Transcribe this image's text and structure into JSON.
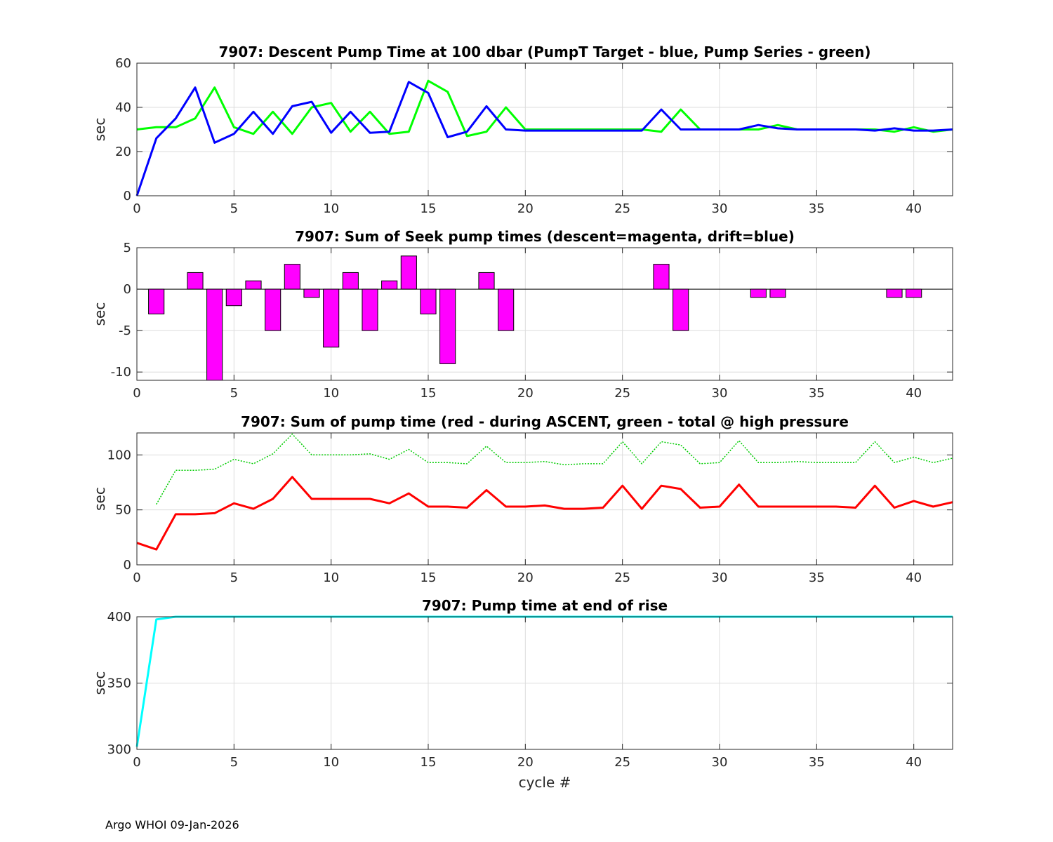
{
  "footer": "Argo WHOI 09-Jan-2026",
  "chart_data": [
    {
      "type": "line",
      "title": "7907: Descent Pump Time at 100 dbar (PumpT Target - blue, Pump Series - green)",
      "xlabel": "",
      "ylabel": "sec",
      "xlim": [
        0,
        42
      ],
      "ylim": [
        0,
        60
      ],
      "xticks": [
        0,
        5,
        10,
        15,
        20,
        25,
        30,
        35,
        40
      ],
      "yticks": [
        0,
        20,
        40,
        60
      ],
      "grid": true,
      "series": [
        {
          "name": "Pump Series",
          "color": "#00ff00",
          "style": "solid",
          "x": [
            0,
            1,
            2,
            3,
            4,
            5,
            6,
            7,
            8,
            9,
            10,
            11,
            12,
            13,
            14,
            15,
            16,
            17,
            18,
            19,
            20,
            21,
            22,
            23,
            24,
            25,
            26,
            27,
            28,
            29,
            30,
            31,
            32,
            33,
            34,
            35,
            36,
            37,
            38,
            39,
            40,
            41,
            42
          ],
          "y": [
            30,
            31,
            31,
            35,
            49,
            31,
            28,
            38,
            28,
            40,
            42,
            29,
            38,
            28,
            29,
            52,
            47,
            27,
            29,
            40,
            30,
            30,
            30,
            30,
            30,
            30,
            30,
            29,
            39,
            30,
            30,
            30,
            30,
            32,
            30,
            30,
            30,
            30,
            30,
            29,
            31,
            29,
            30
          ]
        },
        {
          "name": "PumpT Target",
          "color": "#0000ff",
          "style": "solid",
          "x": [
            0,
            1,
            2,
            3,
            4,
            5,
            6,
            7,
            8,
            9,
            10,
            11,
            12,
            13,
            14,
            15,
            16,
            17,
            18,
            19,
            20,
            21,
            22,
            23,
            24,
            25,
            26,
            27,
            28,
            29,
            30,
            31,
            32,
            33,
            34,
            35,
            36,
            37,
            38,
            39,
            40,
            41,
            42
          ],
          "y": [
            0,
            26,
            35,
            49,
            24,
            28,
            38,
            28,
            40.5,
            42.5,
            28.5,
            38,
            28.5,
            29,
            51.5,
            46.5,
            26.5,
            29,
            40.5,
            30,
            29.5,
            29.5,
            29.5,
            29.5,
            29.5,
            29.5,
            29.5,
            39,
            30,
            30,
            30,
            30,
            32,
            30.5,
            30,
            30,
            30,
            30,
            29.5,
            30.5,
            29.5,
            29.5,
            30
          ]
        }
      ]
    },
    {
      "type": "bar",
      "title": "7907: Sum of Seek pump times (descent=magenta, drift=blue)",
      "xlabel": "",
      "ylabel": "sec",
      "xlim": [
        0,
        42
      ],
      "ylim": [
        -11,
        5
      ],
      "xticks": [
        0,
        5,
        10,
        15,
        20,
        25,
        30,
        35,
        40
      ],
      "yticks": [
        -10,
        -5,
        0,
        5
      ],
      "grid": true,
      "series": [
        {
          "name": "descent",
          "color": "#ff00ff",
          "x": [
            1,
            3,
            4,
            5,
            6,
            7,
            8,
            9,
            10,
            11,
            12,
            13,
            14,
            15,
            16,
            18,
            19,
            27,
            28,
            32,
            33,
            39,
            40
          ],
          "values": [
            -3,
            2,
            -11,
            -2,
            1,
            -5,
            3,
            -1,
            -7,
            2,
            -5,
            1,
            4,
            -3,
            -9,
            2,
            -5,
            3,
            -5,
            -1,
            -1,
            -1,
            -1
          ]
        }
      ]
    },
    {
      "type": "line",
      "title": "7907: Sum of pump time (red - during ASCENT, green - total @ high pressure",
      "xlabel": "",
      "ylabel": "sec",
      "xlim": [
        0,
        42
      ],
      "ylim": [
        0,
        120
      ],
      "xticks": [
        0,
        5,
        10,
        15,
        20,
        25,
        30,
        35,
        40
      ],
      "yticks": [
        0,
        50,
        100
      ],
      "grid": true,
      "series": [
        {
          "name": "total @ high pressure",
          "color": "#00cc00",
          "style": "dotted",
          "x": [
            1,
            2,
            3,
            4,
            5,
            6,
            7,
            8,
            9,
            10,
            11,
            12,
            13,
            14,
            15,
            16,
            17,
            18,
            19,
            20,
            21,
            22,
            23,
            24,
            25,
            26,
            27,
            28,
            29,
            30,
            31,
            32,
            33,
            34,
            35,
            36,
            37,
            38,
            39,
            40,
            41,
            42
          ],
          "y": [
            55,
            86,
            86,
            87,
            96,
            92,
            101,
            119,
            100,
            100,
            100,
            101,
            96,
            105,
            93,
            93,
            92,
            108,
            93,
            93,
            94,
            91,
            92,
            92,
            112,
            92,
            112,
            109,
            92,
            93,
            113,
            93,
            93,
            94,
            93,
            93,
            93,
            112,
            93,
            98,
            93,
            97
          ]
        },
        {
          "name": "during ASCENT",
          "color": "#ff0000",
          "style": "solid",
          "x": [
            0,
            1,
            2,
            3,
            4,
            5,
            6,
            7,
            8,
            9,
            10,
            11,
            12,
            13,
            14,
            15,
            16,
            17,
            18,
            19,
            20,
            21,
            22,
            23,
            24,
            25,
            26,
            27,
            28,
            29,
            30,
            31,
            32,
            33,
            34,
            35,
            36,
            37,
            38,
            39,
            40,
            41,
            42
          ],
          "y": [
            20,
            14,
            46,
            46,
            47,
            56,
            51,
            60,
            80,
            60,
            60,
            60,
            60,
            56,
            65,
            53,
            53,
            52,
            68,
            53,
            53,
            54,
            51,
            51,
            52,
            72,
            51,
            72,
            69,
            52,
            53,
            73,
            53,
            53,
            53,
            53,
            53,
            52,
            72,
            52,
            58,
            53,
            57
          ]
        }
      ]
    },
    {
      "type": "line",
      "title": "7907: Pump time at end of rise",
      "xlabel": "cycle #",
      "ylabel": "sec",
      "xlim": [
        0,
        42
      ],
      "ylim": [
        300,
        400
      ],
      "xticks": [
        0,
        5,
        10,
        15,
        20,
        25,
        30,
        35,
        40
      ],
      "yticks": [
        300,
        350,
        400
      ],
      "grid": true,
      "series": [
        {
          "name": "end of rise",
          "color": "#00ffff",
          "style": "solid",
          "x": [
            0,
            1,
            2,
            3,
            4,
            5,
            6,
            7,
            8,
            9,
            10,
            11,
            12,
            13,
            14,
            15,
            16,
            17,
            18,
            19,
            20,
            21,
            22,
            23,
            24,
            25,
            26,
            27,
            28,
            29,
            30,
            31,
            32,
            33,
            34,
            35,
            36,
            37,
            38,
            39,
            40,
            41,
            42
          ],
          "y": [
            302,
            398,
            400,
            400,
            400,
            400,
            400,
            400,
            400,
            400,
            400,
            400,
            400,
            400,
            400,
            400,
            400,
            400,
            400,
            400,
            400,
            400,
            400,
            400,
            400,
            400,
            400,
            400,
            400,
            400,
            400,
            400,
            400,
            400,
            400,
            400,
            400,
            400,
            400,
            400,
            400,
            400,
            400
          ]
        }
      ]
    }
  ]
}
